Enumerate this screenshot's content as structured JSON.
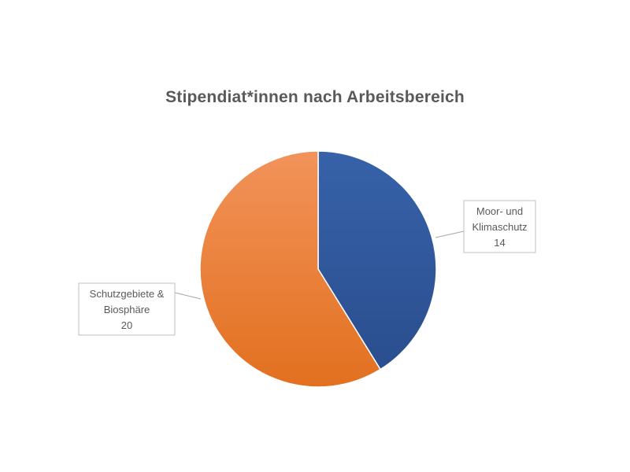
{
  "chart_data": {
    "type": "pie",
    "title": "Stipendiat*innen  nach Arbeitsbereich",
    "slices": [
      {
        "label_lines": [
          "Moor- und",
          "Klimaschutz"
        ],
        "value": 14,
        "value_text": "14",
        "color": "#2E5597"
      },
      {
        "label_lines": [
          "Schutzgebiete &",
          "Biosphäre"
        ],
        "value": 20,
        "value_text": "20",
        "color": "#ED7D31"
      }
    ],
    "start_angle": "12 o'clock, clockwise",
    "labels": "callouts with leader lines",
    "legend": "none"
  }
}
